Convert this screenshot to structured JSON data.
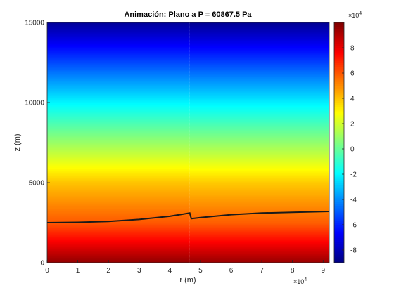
{
  "chart_data": {
    "type": "heatmap",
    "title": "Animación: Plano a P = 60867.5 Pa",
    "xlabel": "r (m)",
    "ylabel": "z (m)",
    "xlim": [
      0,
      92000
    ],
    "ylim": [
      0,
      15000
    ],
    "x_ticks": [
      0,
      10000,
      20000,
      30000,
      40000,
      50000,
      60000,
      70000,
      80000,
      90000
    ],
    "x_tick_labels": [
      "0",
      "1",
      "2",
      "3",
      "4",
      "5",
      "6",
      "7",
      "8",
      "9"
    ],
    "x_exponent": {
      "base": "×10",
      "power": "4"
    },
    "y_ticks": [
      0,
      5000,
      10000,
      15000
    ],
    "y_tick_labels": [
      "0",
      "5000",
      "10000",
      "15000"
    ],
    "colorbar": {
      "colormap": "jet",
      "clim": [
        -90000,
        100000
      ],
      "ticks": [
        -80000,
        -60000,
        -40000,
        -20000,
        0,
        20000,
        40000,
        60000,
        80000
      ],
      "tick_labels": [
        "-8",
        "-6",
        "-4",
        "-2",
        "0",
        "2",
        "4",
        "6",
        "8"
      ],
      "exponent": {
        "base": "×10",
        "power": "4"
      }
    },
    "field": {
      "description_values_at_z": [
        [
          0,
          97000
        ],
        [
          2500,
          60000
        ],
        [
          5000,
          40000
        ],
        [
          10000,
          -20000
        ],
        [
          15000,
          -85000
        ]
      ],
      "discontinuity_r": 46500
    },
    "isoline": {
      "name": "",
      "points": [
        [
          0,
          2500
        ],
        [
          10000,
          2520
        ],
        [
          20000,
          2580
        ],
        [
          30000,
          2700
        ],
        [
          40000,
          2900
        ],
        [
          46500,
          3100
        ],
        [
          47000,
          2750
        ],
        [
          50000,
          2820
        ],
        [
          60000,
          3000
        ],
        [
          70000,
          3100
        ],
        [
          80000,
          3150
        ],
        [
          92000,
          3200
        ]
      ]
    }
  },
  "colors": {
    "background": "#ffffff",
    "axis": "#262626",
    "isoline": "#1a1a1a"
  }
}
